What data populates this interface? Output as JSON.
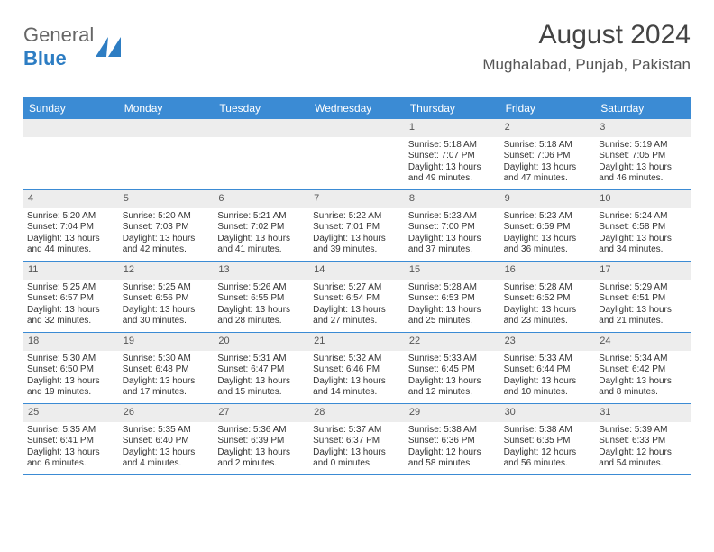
{
  "logo": {
    "text1": "General",
    "text2": "Blue",
    "icon_color": "#2d7dc3"
  },
  "title": "August 2024",
  "location": "Mughalabad, Punjab, Pakistan",
  "styling": {
    "header_bg": "#3b8bd4",
    "header_text": "#ffffff",
    "dayname_fontsize": 12,
    "cell_fontsize": 10,
    "daynum_bg": "#ededed",
    "rule_color": "#3b8bd4",
    "body_text": "#333333",
    "title_color": "#444444",
    "location_color": "#555555",
    "title_fontsize": 30,
    "location_fontsize": 17
  },
  "daynames": [
    "Sunday",
    "Monday",
    "Tuesday",
    "Wednesday",
    "Thursday",
    "Friday",
    "Saturday"
  ],
  "weeks": [
    [
      {
        "empty": true
      },
      {
        "empty": true
      },
      {
        "empty": true
      },
      {
        "empty": true
      },
      {
        "d": "1",
        "sr": "5:18 AM",
        "ss": "7:07 PM",
        "dl": "13 hours and 49 minutes."
      },
      {
        "d": "2",
        "sr": "5:18 AM",
        "ss": "7:06 PM",
        "dl": "13 hours and 47 minutes."
      },
      {
        "d": "3",
        "sr": "5:19 AM",
        "ss": "7:05 PM",
        "dl": "13 hours and 46 minutes."
      }
    ],
    [
      {
        "d": "4",
        "sr": "5:20 AM",
        "ss": "7:04 PM",
        "dl": "13 hours and 44 minutes."
      },
      {
        "d": "5",
        "sr": "5:20 AM",
        "ss": "7:03 PM",
        "dl": "13 hours and 42 minutes."
      },
      {
        "d": "6",
        "sr": "5:21 AM",
        "ss": "7:02 PM",
        "dl": "13 hours and 41 minutes."
      },
      {
        "d": "7",
        "sr": "5:22 AM",
        "ss": "7:01 PM",
        "dl": "13 hours and 39 minutes."
      },
      {
        "d": "8",
        "sr": "5:23 AM",
        "ss": "7:00 PM",
        "dl": "13 hours and 37 minutes."
      },
      {
        "d": "9",
        "sr": "5:23 AM",
        "ss": "6:59 PM",
        "dl": "13 hours and 36 minutes."
      },
      {
        "d": "10",
        "sr": "5:24 AM",
        "ss": "6:58 PM",
        "dl": "13 hours and 34 minutes."
      }
    ],
    [
      {
        "d": "11",
        "sr": "5:25 AM",
        "ss": "6:57 PM",
        "dl": "13 hours and 32 minutes."
      },
      {
        "d": "12",
        "sr": "5:25 AM",
        "ss": "6:56 PM",
        "dl": "13 hours and 30 minutes."
      },
      {
        "d": "13",
        "sr": "5:26 AM",
        "ss": "6:55 PM",
        "dl": "13 hours and 28 minutes."
      },
      {
        "d": "14",
        "sr": "5:27 AM",
        "ss": "6:54 PM",
        "dl": "13 hours and 27 minutes."
      },
      {
        "d": "15",
        "sr": "5:28 AM",
        "ss": "6:53 PM",
        "dl": "13 hours and 25 minutes."
      },
      {
        "d": "16",
        "sr": "5:28 AM",
        "ss": "6:52 PM",
        "dl": "13 hours and 23 minutes."
      },
      {
        "d": "17",
        "sr": "5:29 AM",
        "ss": "6:51 PM",
        "dl": "13 hours and 21 minutes."
      }
    ],
    [
      {
        "d": "18",
        "sr": "5:30 AM",
        "ss": "6:50 PM",
        "dl": "13 hours and 19 minutes."
      },
      {
        "d": "19",
        "sr": "5:30 AM",
        "ss": "6:48 PM",
        "dl": "13 hours and 17 minutes."
      },
      {
        "d": "20",
        "sr": "5:31 AM",
        "ss": "6:47 PM",
        "dl": "13 hours and 15 minutes."
      },
      {
        "d": "21",
        "sr": "5:32 AM",
        "ss": "6:46 PM",
        "dl": "13 hours and 14 minutes."
      },
      {
        "d": "22",
        "sr": "5:33 AM",
        "ss": "6:45 PM",
        "dl": "13 hours and 12 minutes."
      },
      {
        "d": "23",
        "sr": "5:33 AM",
        "ss": "6:44 PM",
        "dl": "13 hours and 10 minutes."
      },
      {
        "d": "24",
        "sr": "5:34 AM",
        "ss": "6:42 PM",
        "dl": "13 hours and 8 minutes."
      }
    ],
    [
      {
        "d": "25",
        "sr": "5:35 AM",
        "ss": "6:41 PM",
        "dl": "13 hours and 6 minutes."
      },
      {
        "d": "26",
        "sr": "5:35 AM",
        "ss": "6:40 PM",
        "dl": "13 hours and 4 minutes."
      },
      {
        "d": "27",
        "sr": "5:36 AM",
        "ss": "6:39 PM",
        "dl": "13 hours and 2 minutes."
      },
      {
        "d": "28",
        "sr": "5:37 AM",
        "ss": "6:37 PM",
        "dl": "13 hours and 0 minutes."
      },
      {
        "d": "29",
        "sr": "5:38 AM",
        "ss": "6:36 PM",
        "dl": "12 hours and 58 minutes."
      },
      {
        "d": "30",
        "sr": "5:38 AM",
        "ss": "6:35 PM",
        "dl": "12 hours and 56 minutes."
      },
      {
        "d": "31",
        "sr": "5:39 AM",
        "ss": "6:33 PM",
        "dl": "12 hours and 54 minutes."
      }
    ]
  ],
  "labels": {
    "sunrise": "Sunrise:",
    "sunset": "Sunset:",
    "daylight": "Daylight:"
  }
}
